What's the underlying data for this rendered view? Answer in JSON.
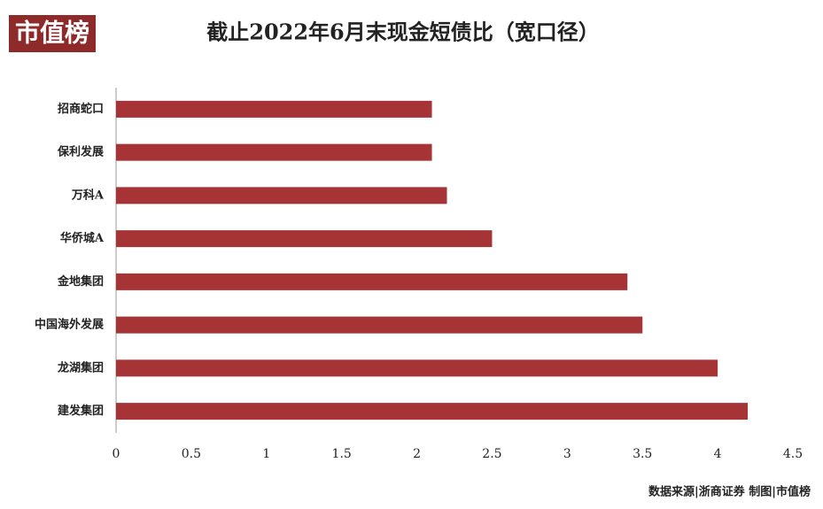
{
  "chart_data": {
    "type": "barh",
    "title": "截止2022年6月末现金短债比（宽口径）",
    "logo": "市值榜",
    "source": "数据来源|浙商证券   制图|市值榜",
    "categories": [
      "招商蛇口",
      "保利发展",
      "万科A",
      "华侨城A",
      "金地集团",
      "中国海外发展",
      "龙湖集团",
      "建发集团"
    ],
    "values": [
      2.1,
      2.1,
      2.2,
      2.5,
      3.4,
      3.5,
      4.0,
      4.2
    ],
    "color": "#a63335",
    "xlim": [
      0,
      4.5
    ],
    "xticks": [
      0,
      0.5,
      1,
      1.5,
      2,
      2.5,
      3,
      3.5,
      4,
      4.5
    ],
    "grid": false
  }
}
